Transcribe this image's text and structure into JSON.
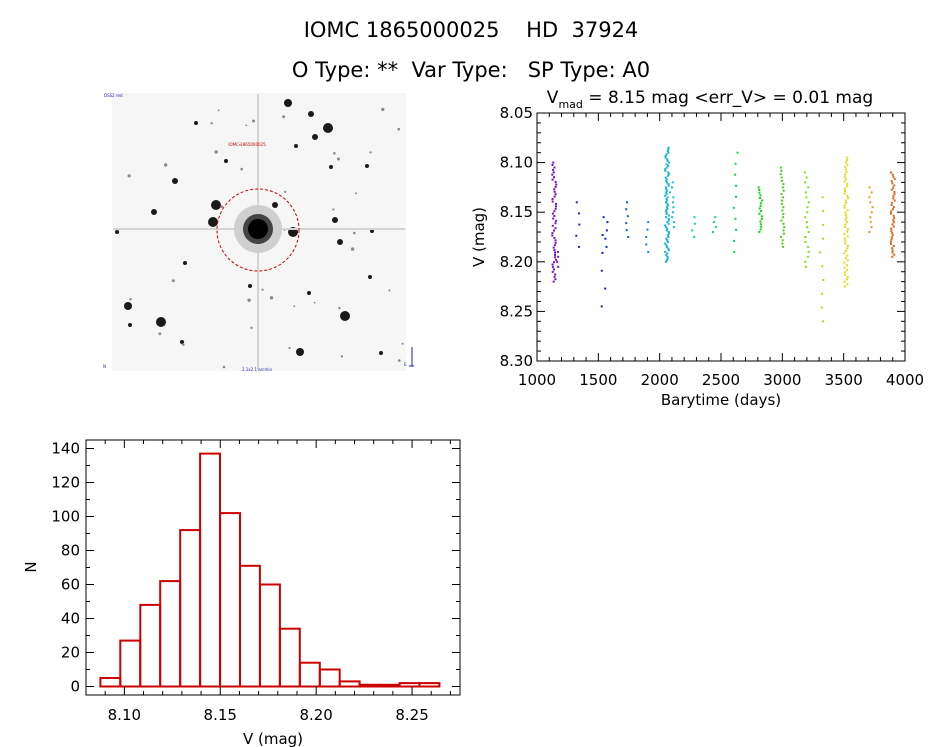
{
  "header": {
    "line1": "IOMC 1865000025    HD  37924",
    "line2": "O Type: **  Var Type:   SP Type: A0"
  },
  "image_panel": {
    "label_top_left": "DSS2 red",
    "label_center": "IOMC 1865000025",
    "label_bottom_left": "N",
    "label_bottom_center": "2.1x2.1 arcmin",
    "label_bottom_right": "E",
    "circle_color": "#cc0000"
  },
  "chart_data": [
    {
      "type": "scatter",
      "title_main": "V",
      "title_sub": "mad",
      "title_rest": " = 8.15 mag <err_V> = 0.01 mag",
      "xlabel": "Barytime (days)",
      "ylabel": "V (mag)",
      "xlim": [
        1000,
        4000
      ],
      "ylim": [
        8.3,
        8.05
      ],
      "xticks": [
        "1000",
        "1500",
        "2000",
        "2500",
        "3000",
        "3500",
        "4000"
      ],
      "yticks": [
        "8.05",
        "8.10",
        "8.15",
        "8.20",
        "8.25",
        "8.30"
      ],
      "color_scale": "time (purple → blue → cyan → green → yellow → orange)",
      "groups": [
        {
          "x": 1140,
          "count": 50,
          "ymin": 8.1,
          "ymax": 8.22
        },
        {
          "x": 1180,
          "count": 4,
          "ymin": 8.19,
          "ymax": 8.205
        },
        {
          "x": 1330,
          "count": 5,
          "ymin": 8.14,
          "ymax": 8.185
        },
        {
          "x": 1540,
          "count": 6,
          "ymin": 8.155,
          "ymax": 8.245
        },
        {
          "x": 1560,
          "count": 4,
          "ymin": 8.16,
          "ymax": 8.185
        },
        {
          "x": 1740,
          "count": 6,
          "ymin": 8.14,
          "ymax": 8.175
        },
        {
          "x": 1900,
          "count": 5,
          "ymin": 8.16,
          "ymax": 8.19
        },
        {
          "x": 2060,
          "count": 70,
          "ymin": 8.085,
          "ymax": 8.2
        },
        {
          "x": 2100,
          "count": 10,
          "ymin": 8.12,
          "ymax": 8.165
        },
        {
          "x": 2280,
          "count": 4,
          "ymin": 8.155,
          "ymax": 8.175
        },
        {
          "x": 2450,
          "count": 4,
          "ymin": 8.155,
          "ymax": 8.17
        },
        {
          "x": 2620,
          "count": 10,
          "ymin": 8.09,
          "ymax": 8.19
        },
        {
          "x": 2820,
          "count": 18,
          "ymin": 8.125,
          "ymax": 8.17
        },
        {
          "x": 3000,
          "count": 25,
          "ymin": 8.105,
          "ymax": 8.185
        },
        {
          "x": 3200,
          "count": 20,
          "ymin": 8.11,
          "ymax": 8.205
        },
        {
          "x": 3320,
          "count": 10,
          "ymin": 8.135,
          "ymax": 8.26
        },
        {
          "x": 3520,
          "count": 55,
          "ymin": 8.095,
          "ymax": 8.225
        },
        {
          "x": 3720,
          "count": 10,
          "ymin": 8.125,
          "ymax": 8.17
        },
        {
          "x": 3900,
          "count": 40,
          "ymin": 8.11,
          "ymax": 8.195
        }
      ]
    },
    {
      "type": "bar",
      "subtype": "histogram",
      "xlabel": "V (mag)",
      "ylabel": "N",
      "xlim": [
        8.08,
        8.275
      ],
      "ylim": [
        -5,
        145
      ],
      "xticks": [
        "8.10",
        "8.15",
        "8.20",
        "8.25"
      ],
      "yticks": [
        "0",
        "20",
        "40",
        "60",
        "80",
        "100",
        "120",
        "140"
      ],
      "bin_start": 8.0875,
      "bin_width": 0.0104,
      "values": [
        5,
        27,
        48,
        62,
        92,
        137,
        102,
        71,
        60,
        34,
        14,
        10,
        3,
        1,
        1,
        2,
        2
      ],
      "bar_color": "#cc0000"
    }
  ]
}
